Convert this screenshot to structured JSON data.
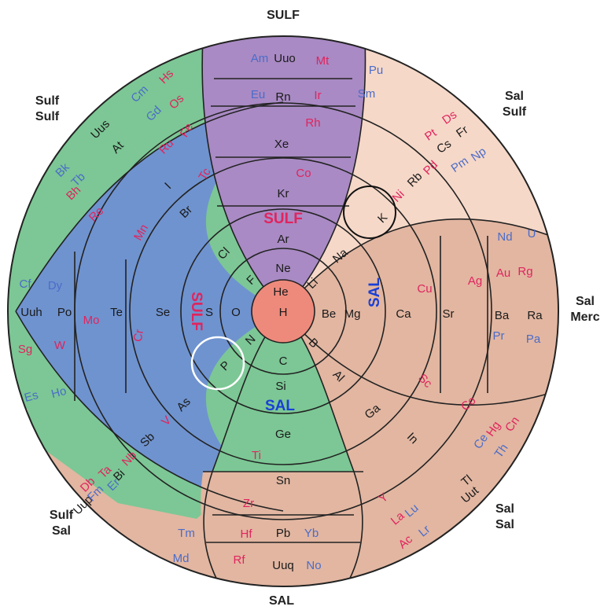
{
  "outer_labels": {
    "top": "SULF",
    "bottom": "SAL",
    "top_left": [
      "Sulf",
      "Sulf"
    ],
    "top_right": [
      "Sal",
      "Sulf"
    ],
    "bottom_left": [
      "Sulf",
      "Sal"
    ],
    "bottom_right": [
      "Sal",
      "Sal"
    ],
    "right": [
      "Sal",
      "Merc"
    ]
  },
  "region_labels": {
    "sulf_top": "SULF",
    "sulf_left": "SULF",
    "sal_bottom": "SAL",
    "sal_right": "SAL"
  },
  "colors": {
    "purple": "#a98ac4",
    "blue": "#6f93cf",
    "green": "#7cc795",
    "salmon": "#e2b6a1",
    "peach": "#f6d8c8",
    "center": "#ee8a7c",
    "red_text": "#e0245e",
    "blue_text": "#4b6cc8",
    "black_text": "#1a1a1a"
  },
  "center": "H",
  "elements": [
    {
      "t": "Am",
      "c": "blue"
    },
    {
      "t": "Uuo",
      "c": "black"
    },
    {
      "t": "Mt",
      "c": "red"
    },
    {
      "t": "Eu",
      "c": "blue"
    },
    {
      "t": "Rn",
      "c": "black"
    },
    {
      "t": "Ir",
      "c": "red"
    },
    {
      "t": "Rh",
      "c": "red"
    },
    {
      "t": "Xe",
      "c": "black"
    },
    {
      "t": "Co",
      "c": "red"
    },
    {
      "t": "Kr",
      "c": "black"
    },
    {
      "t": "Ar",
      "c": "black"
    },
    {
      "t": "Ne",
      "c": "black"
    },
    {
      "t": "He",
      "c": "black"
    },
    {
      "t": "Pu",
      "c": "blue"
    },
    {
      "t": "Sm",
      "c": "blue"
    },
    {
      "t": "Pt",
      "c": "red"
    },
    {
      "t": "Ds",
      "c": "red"
    },
    {
      "t": "Cs",
      "c": "black"
    },
    {
      "t": "Fr",
      "c": "black"
    },
    {
      "t": "Pm",
      "c": "blue"
    },
    {
      "t": "Np",
      "c": "blue"
    },
    {
      "t": "Ni",
      "c": "red"
    },
    {
      "t": "Rb",
      "c": "black"
    },
    {
      "t": "Pd",
      "c": "red"
    },
    {
      "t": "K",
      "c": "black"
    },
    {
      "t": "Na",
      "c": "black"
    },
    {
      "t": "Li",
      "c": "black"
    },
    {
      "t": "Nd",
      "c": "blue"
    },
    {
      "t": "U",
      "c": "blue"
    },
    {
      "t": "Cu",
      "c": "red"
    },
    {
      "t": "Ag",
      "c": "red"
    },
    {
      "t": "Au",
      "c": "red"
    },
    {
      "t": "Rg",
      "c": "red"
    },
    {
      "t": "Be",
      "c": "black"
    },
    {
      "t": "Mg",
      "c": "black"
    },
    {
      "t": "Ca",
      "c": "black"
    },
    {
      "t": "Sr",
      "c": "black"
    },
    {
      "t": "Ba",
      "c": "black"
    },
    {
      "t": "Ra",
      "c": "black"
    },
    {
      "t": "Pr",
      "c": "blue"
    },
    {
      "t": "Pa",
      "c": "blue"
    },
    {
      "t": "B",
      "c": "black"
    },
    {
      "t": "Al",
      "c": "black"
    },
    {
      "t": "Sc",
      "c": "red"
    },
    {
      "t": "Co",
      "c": "red"
    },
    {
      "t": "Ga",
      "c": "black"
    },
    {
      "t": "In",
      "c": "black"
    },
    {
      "t": "Ce",
      "c": "blue"
    },
    {
      "t": "Hg",
      "c": "red"
    },
    {
      "t": "Cn",
      "c": "red"
    },
    {
      "t": "Th",
      "c": "blue"
    },
    {
      "t": "Tl",
      "c": "black"
    },
    {
      "t": "Uut",
      "c": "black"
    },
    {
      "t": "Y",
      "c": "red"
    },
    {
      "t": "La",
      "c": "red"
    },
    {
      "t": "Lu",
      "c": "blue"
    },
    {
      "t": "Ac",
      "c": "red"
    },
    {
      "t": "Lr",
      "c": "blue"
    },
    {
      "t": "C",
      "c": "black"
    },
    {
      "t": "Si",
      "c": "black"
    },
    {
      "t": "Ge",
      "c": "black"
    },
    {
      "t": "Ti",
      "c": "red"
    },
    {
      "t": "Sn",
      "c": "black"
    },
    {
      "t": "Zr",
      "c": "red"
    },
    {
      "t": "Hf",
      "c": "red"
    },
    {
      "t": "Pb",
      "c": "black"
    },
    {
      "t": "Yb",
      "c": "blue"
    },
    {
      "t": "Tm",
      "c": "blue"
    },
    {
      "t": "Md",
      "c": "blue"
    },
    {
      "t": "Rf",
      "c": "red"
    },
    {
      "t": "Uuq",
      "c": "black"
    },
    {
      "t": "No",
      "c": "blue"
    },
    {
      "t": "N",
      "c": "black"
    },
    {
      "t": "P",
      "c": "black"
    },
    {
      "t": "As",
      "c": "black"
    },
    {
      "t": "V",
      "c": "red"
    },
    {
      "t": "Sb",
      "c": "black"
    },
    {
      "t": "Nb",
      "c": "red"
    },
    {
      "t": "Bi",
      "c": "black"
    },
    {
      "t": "Db",
      "c": "red"
    },
    {
      "t": "Ta",
      "c": "red"
    },
    {
      "t": "Uup",
      "c": "black"
    },
    {
      "t": "Fm",
      "c": "blue"
    },
    {
      "t": "Er",
      "c": "blue"
    },
    {
      "t": "Es",
      "c": "blue"
    },
    {
      "t": "Ho",
      "c": "blue"
    },
    {
      "t": "O",
      "c": "black"
    },
    {
      "t": "S",
      "c": "black"
    },
    {
      "t": "Se",
      "c": "black"
    },
    {
      "t": "Te",
      "c": "black"
    },
    {
      "t": "Po",
      "c": "black"
    },
    {
      "t": "Uuh",
      "c": "black"
    },
    {
      "t": "Cr",
      "c": "red"
    },
    {
      "t": "Mo",
      "c": "red"
    },
    {
      "t": "W",
      "c": "red"
    },
    {
      "t": "Sg",
      "c": "red"
    },
    {
      "t": "Cf",
      "c": "blue"
    },
    {
      "t": "Dy",
      "c": "blue"
    },
    {
      "t": "F",
      "c": "black"
    },
    {
      "t": "Cl",
      "c": "black"
    },
    {
      "t": "Br",
      "c": "black"
    },
    {
      "t": "I",
      "c": "black"
    },
    {
      "t": "At",
      "c": "black"
    },
    {
      "t": "Uus",
      "c": "black"
    },
    {
      "t": "Mn",
      "c": "red"
    },
    {
      "t": "Tc",
      "c": "red"
    },
    {
      "t": "Re",
      "c": "red"
    },
    {
      "t": "Bh",
      "c": "red"
    },
    {
      "t": "Bk",
      "c": "blue"
    },
    {
      "t": "Tb",
      "c": "blue"
    },
    {
      "t": "Fe",
      "c": "red"
    },
    {
      "t": "Ru",
      "c": "red"
    },
    {
      "t": "Os",
      "c": "red"
    },
    {
      "t": "Hs",
      "c": "red"
    },
    {
      "t": "Cm",
      "c": "blue"
    },
    {
      "t": "Gd",
      "c": "blue"
    }
  ]
}
